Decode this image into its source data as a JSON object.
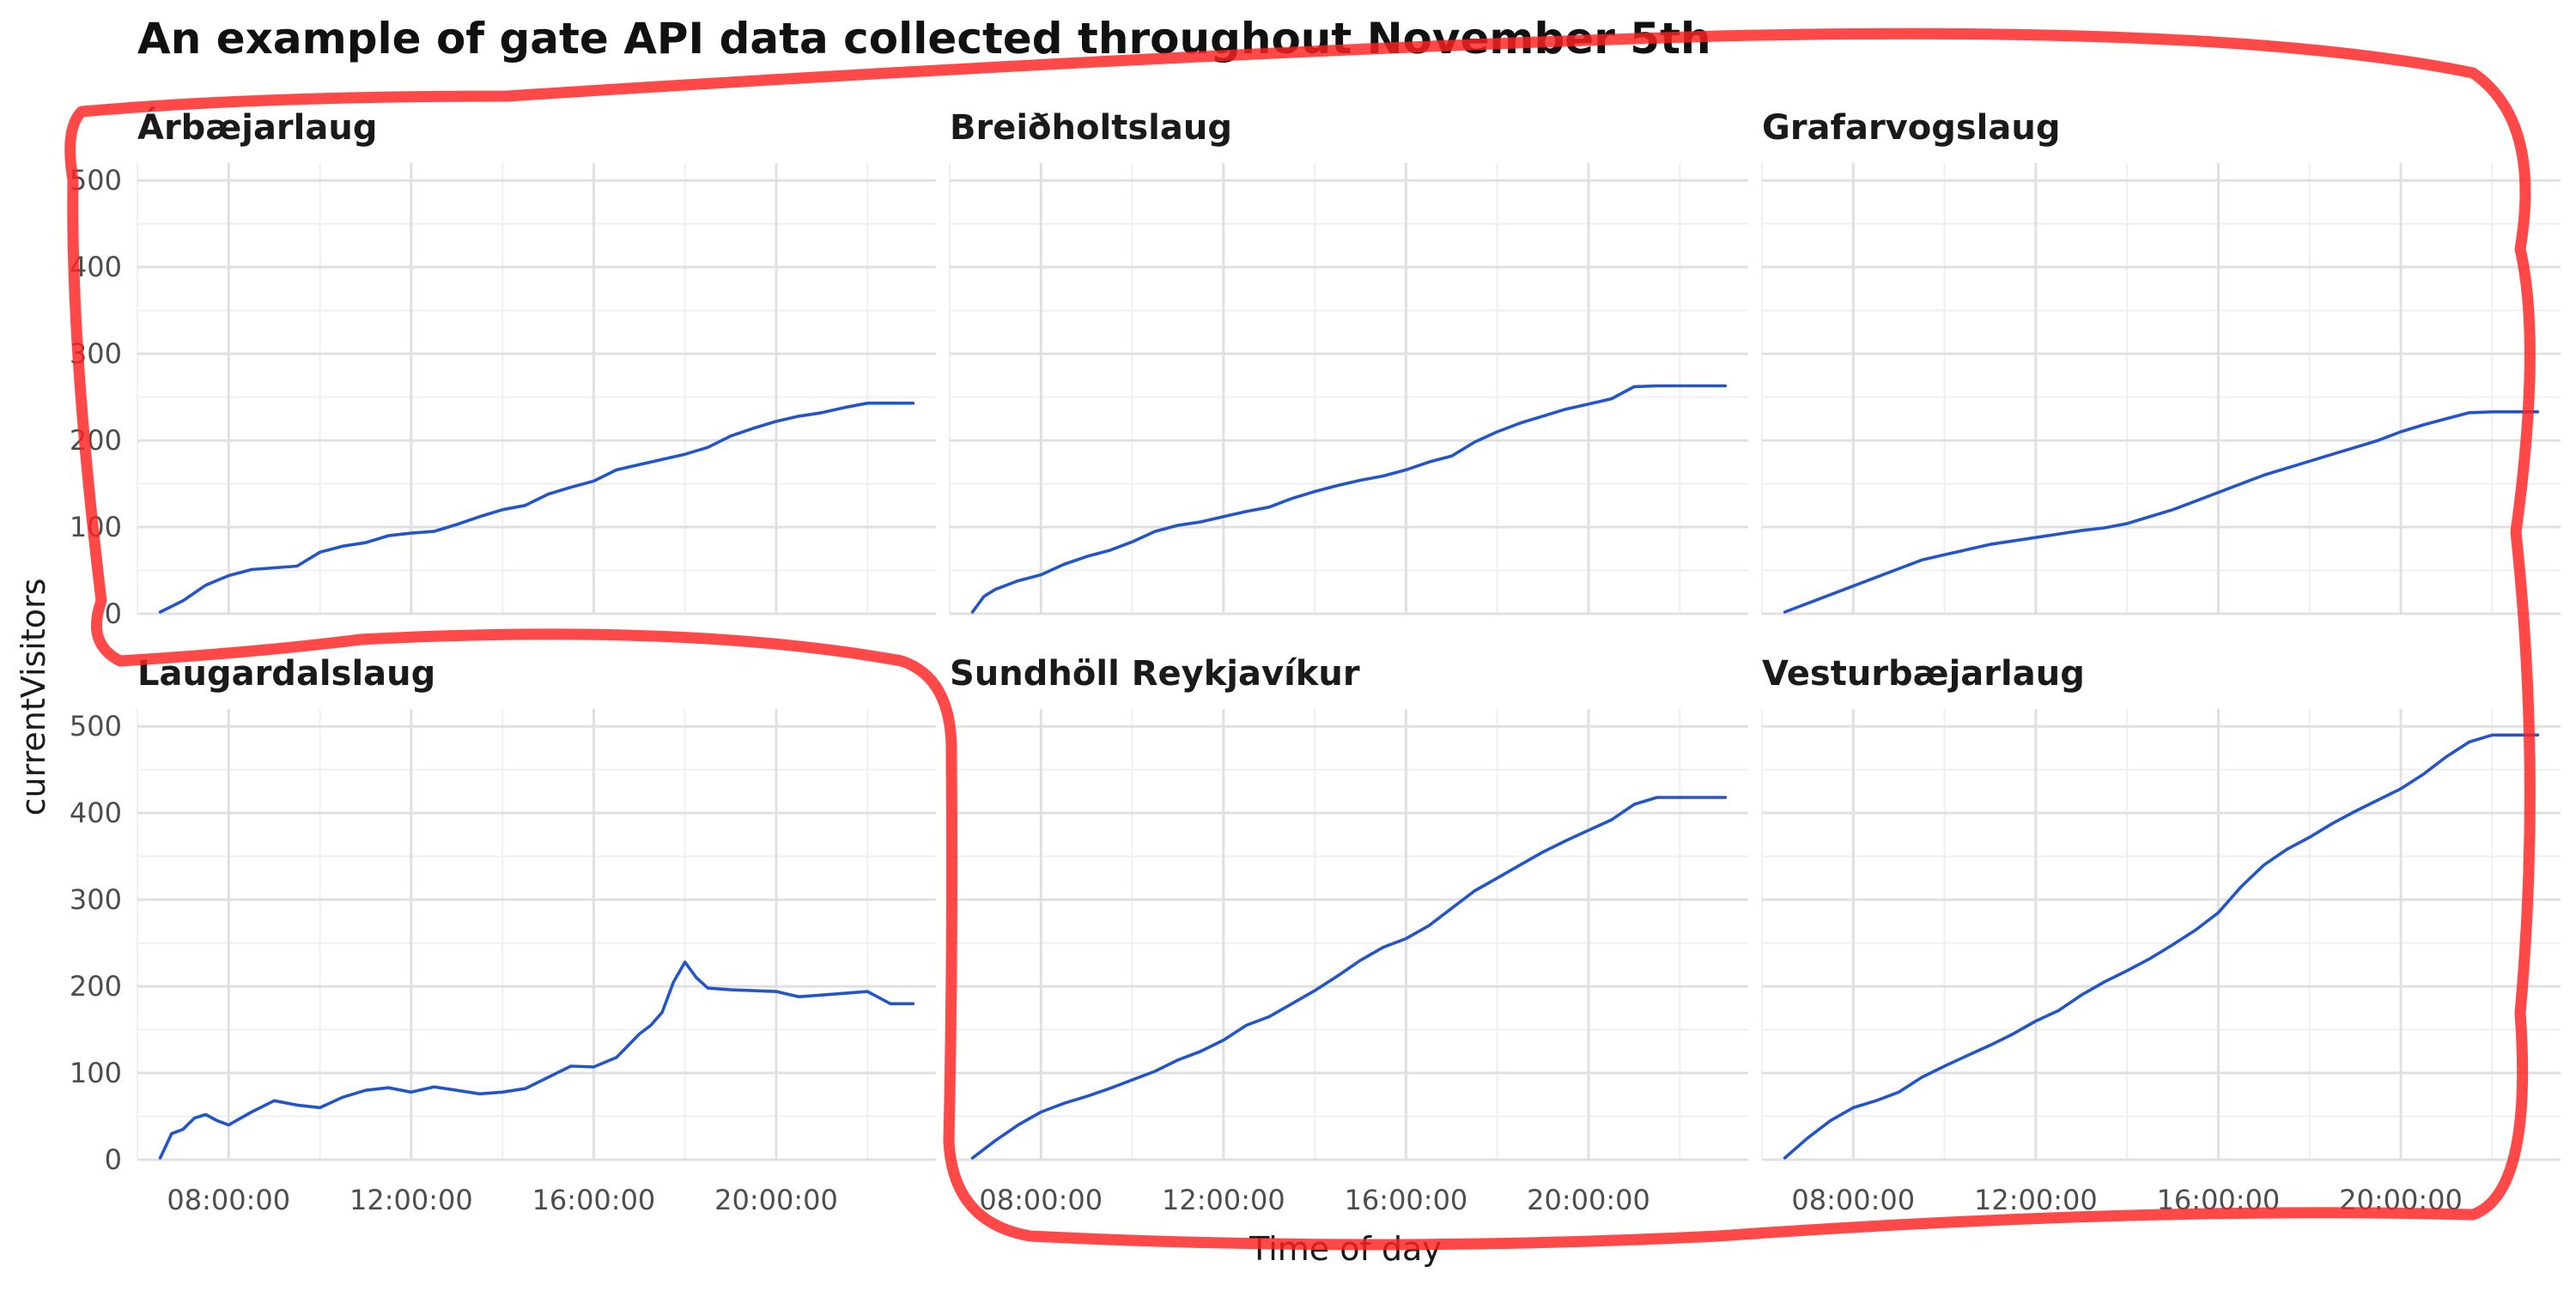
{
  "chart_data": {
    "type": "line",
    "title": "An example of gate API data collected throughout November 5th",
    "xlabel": "Time of day",
    "ylabel": "currentVisitors",
    "xlim": [
      "06:00:00",
      "23:30:00"
    ],
    "ylim": [
      0,
      520
    ],
    "x_ticks": [
      "08:00:00",
      "12:00:00",
      "16:00:00",
      "20:00:00"
    ],
    "y_ticks": [
      0,
      100,
      200,
      300,
      400,
      500
    ],
    "grid": true,
    "line_color": "#2255CC",
    "annotation_color": "#FF2020",
    "facets": [
      {
        "name": "Árbæjarlaug",
        "x": [
          "06:30",
          "07:00",
          "07:30",
          "08:00",
          "08:30",
          "09:00",
          "09:30",
          "10:00",
          "10:30",
          "11:00",
          "11:30",
          "12:00",
          "12:30",
          "13:00",
          "13:30",
          "14:00",
          "14:30",
          "15:00",
          "15:30",
          "16:00",
          "16:30",
          "17:00",
          "17:30",
          "18:00",
          "18:30",
          "19:00",
          "19:30",
          "20:00",
          "20:30",
          "21:00",
          "21:30",
          "22:00",
          "22:30",
          "23:00"
        ],
        "values": [
          2,
          15,
          33,
          44,
          51,
          53,
          55,
          71,
          78,
          82,
          90,
          93,
          95,
          103,
          112,
          120,
          125,
          138,
          146,
          153,
          166,
          172,
          178,
          184,
          192,
          205,
          214,
          222,
          228,
          232,
          238,
          243,
          243,
          243
        ]
      },
      {
        "name": "Breiðholtslaug",
        "x": [
          "06:30",
          "06:45",
          "07:00",
          "07:30",
          "08:00",
          "08:30",
          "09:00",
          "09:30",
          "10:00",
          "10:30",
          "11:00",
          "11:30",
          "12:00",
          "12:30",
          "13:00",
          "13:30",
          "14:00",
          "14:30",
          "15:00",
          "15:30",
          "16:00",
          "16:30",
          "17:00",
          "17:30",
          "18:00",
          "18:30",
          "19:00",
          "19:30",
          "20:00",
          "20:30",
          "21:00",
          "21:30",
          "22:00",
          "22:30",
          "23:00"
        ],
        "values": [
          2,
          20,
          28,
          38,
          45,
          57,
          66,
          73,
          83,
          95,
          102,
          106,
          112,
          118,
          123,
          133,
          141,
          148,
          154,
          159,
          166,
          175,
          182,
          198,
          210,
          220,
          228,
          236,
          242,
          248,
          262,
          263,
          263,
          263,
          263
        ]
      },
      {
        "name": "Grafarvogslaug",
        "x": [
          "06:30",
          "07:00",
          "07:30",
          "08:00",
          "08:30",
          "09:00",
          "09:30",
          "10:00",
          "10:30",
          "11:00",
          "11:30",
          "12:00",
          "12:30",
          "13:00",
          "13:30",
          "14:00",
          "14:30",
          "15:00",
          "15:30",
          "16:00",
          "16:30",
          "17:00",
          "17:30",
          "18:00",
          "18:30",
          "19:00",
          "19:30",
          "20:00",
          "20:30",
          "21:00",
          "21:30",
          "22:00",
          "22:30",
          "23:00"
        ],
        "values": [
          2,
          12,
          22,
          32,
          42,
          52,
          62,
          68,
          74,
          80,
          84,
          88,
          92,
          96,
          99,
          104,
          112,
          120,
          130,
          140,
          150,
          160,
          168,
          176,
          184,
          192,
          200,
          210,
          218,
          225,
          232,
          233,
          233,
          233
        ]
      },
      {
        "name": "Laugardalslaug",
        "x": [
          "06:30",
          "06:45",
          "07:00",
          "07:15",
          "07:30",
          "07:45",
          "08:00",
          "08:30",
          "09:00",
          "09:30",
          "10:00",
          "10:30",
          "11:00",
          "11:30",
          "12:00",
          "12:30",
          "13:00",
          "13:30",
          "14:00",
          "14:30",
          "15:00",
          "15:30",
          "16:00",
          "16:30",
          "17:00",
          "17:15",
          "17:30",
          "17:45",
          "18:00",
          "18:15",
          "18:30",
          "19:00",
          "19:30",
          "20:00",
          "20:30",
          "21:00",
          "21:30",
          "22:00",
          "22:30",
          "23:00"
        ],
        "values": [
          2,
          30,
          35,
          48,
          52,
          45,
          40,
          55,
          68,
          63,
          60,
          72,
          80,
          83,
          78,
          84,
          80,
          76,
          78,
          82,
          95,
          108,
          107,
          118,
          145,
          155,
          170,
          205,
          228,
          210,
          198,
          196,
          195,
          194,
          188,
          190,
          192,
          194,
          180,
          180
        ]
      },
      {
        "name": "Sundhöll Reykjavíkur",
        "x": [
          "06:30",
          "07:00",
          "07:30",
          "08:00",
          "08:30",
          "09:00",
          "09:30",
          "10:00",
          "10:30",
          "11:00",
          "11:30",
          "12:00",
          "12:30",
          "13:00",
          "13:30",
          "14:00",
          "14:30",
          "15:00",
          "15:30",
          "16:00",
          "16:30",
          "17:00",
          "17:30",
          "18:00",
          "18:30",
          "19:00",
          "19:30",
          "20:00",
          "20:30",
          "21:00",
          "21:30",
          "22:00",
          "22:30",
          "23:00"
        ],
        "values": [
          2,
          22,
          40,
          55,
          65,
          73,
          82,
          92,
          102,
          115,
          125,
          138,
          155,
          165,
          180,
          195,
          212,
          230,
          245,
          255,
          270,
          290,
          310,
          325,
          340,
          355,
          368,
          380,
          392,
          410,
          418,
          418,
          418,
          418
        ]
      },
      {
        "name": "Vesturbæjarlaug",
        "x": [
          "06:30",
          "07:00",
          "07:30",
          "08:00",
          "08:30",
          "09:00",
          "09:30",
          "10:00",
          "10:30",
          "11:00",
          "11:30",
          "12:00",
          "12:30",
          "13:00",
          "13:30",
          "14:00",
          "14:30",
          "15:00",
          "15:30",
          "16:00",
          "16:30",
          "17:00",
          "17:30",
          "18:00",
          "18:30",
          "19:00",
          "19:30",
          "20:00",
          "20:30",
          "21:00",
          "21:30",
          "22:00",
          "22:30",
          "23:00"
        ],
        "values": [
          2,
          25,
          45,
          60,
          68,
          78,
          95,
          108,
          120,
          132,
          145,
          160,
          172,
          190,
          205,
          218,
          232,
          248,
          265,
          285,
          315,
          340,
          358,
          372,
          388,
          402,
          415,
          428,
          445,
          465,
          482,
          490,
          490,
          490
        ]
      }
    ]
  }
}
